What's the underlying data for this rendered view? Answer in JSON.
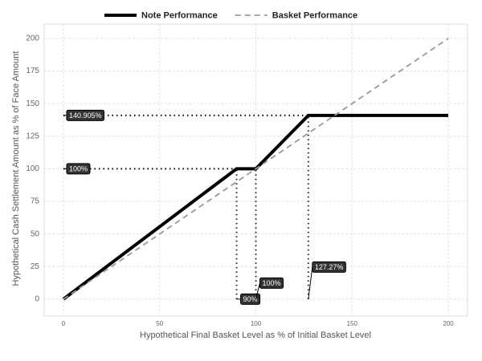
{
  "chart_data": {
    "type": "line",
    "xlabel": "Hypothetical Final Basket Level as % of Initial Basket Level",
    "ylabel": "Hypothetical Cash Settlement Amount as % of Face Amount",
    "xlim": [
      -10,
      210
    ],
    "ylim": [
      -13,
      211
    ],
    "xticks": [
      0,
      50,
      100,
      150,
      200
    ],
    "yticks": [
      0,
      25,
      50,
      75,
      100,
      125,
      150,
      175,
      200
    ],
    "grid": true,
    "legend": "top",
    "series": [
      {
        "name": "Note Performance",
        "color": "#000000",
        "style": "solid",
        "x": [
          0,
          90,
          100,
          127.27,
          200
        ],
        "values": [
          0,
          100,
          100,
          140.905,
          140.905
        ]
      },
      {
        "name": "Basket Performance",
        "color": "#999999",
        "style": "dashed",
        "x": [
          0,
          200
        ],
        "values": [
          0,
          200
        ]
      }
    ],
    "annotations": [
      {
        "label": "140.905%",
        "value": 140.905,
        "axis": "y"
      },
      {
        "label": "100%",
        "value": 100,
        "axis": "y"
      },
      {
        "label": "90%",
        "value": 90,
        "axis": "x"
      },
      {
        "label": "100%",
        "value": 100,
        "axis": "x"
      },
      {
        "label": "127.27%",
        "value": 127.27,
        "axis": "x"
      }
    ]
  }
}
